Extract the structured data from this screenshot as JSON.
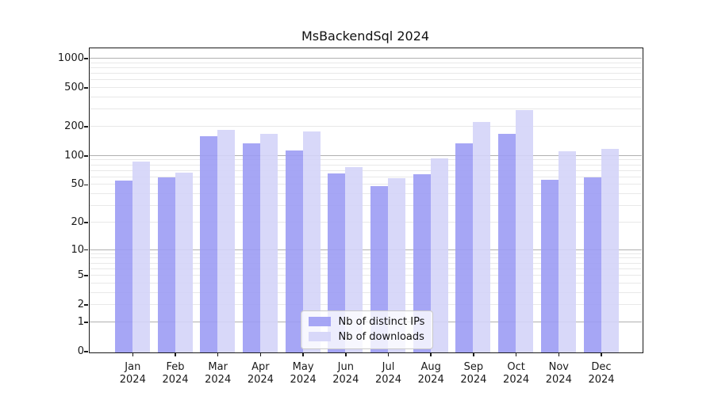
{
  "title": "MsBackendSql 2024",
  "chart_data": {
    "type": "bar",
    "title": "MsBackendSql 2024",
    "categories": [
      "Jan 2024",
      "Feb 2024",
      "Mar 2024",
      "Apr 2024",
      "May 2024",
      "Jun 2024",
      "Jul 2024",
      "Aug 2024",
      "Sep 2024",
      "Oct 2024",
      "Nov 2024",
      "Dec 2024"
    ],
    "series": [
      {
        "name": "Nb of distinct IPs",
        "color": "#9c9cf4",
        "values": [
          56,
          61,
          162,
          136,
          115,
          67,
          49,
          65,
          136,
          170,
          57,
          61
        ]
      },
      {
        "name": "Nb of downloads",
        "color": "#d4d4f8",
        "values": [
          88,
          68,
          187,
          172,
          181,
          78,
          59,
          95,
          225,
          302,
          113,
          120
        ]
      }
    ],
    "y_axis": {
      "scale": "log1p",
      "ticks": [
        0,
        1,
        2,
        5,
        10,
        20,
        50,
        100,
        200,
        500,
        1000
      ],
      "max": 1275
    },
    "grid": "on",
    "legend_position": "lower center"
  },
  "colors": {
    "major_grid": "#b0b0b0",
    "minor_grid": "#e8e8e8",
    "spine": "#1a1a1a"
  }
}
